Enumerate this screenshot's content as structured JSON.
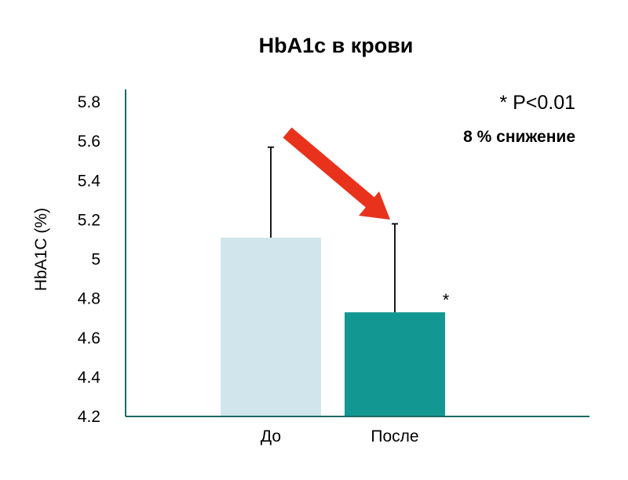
{
  "chart_data": {
    "type": "bar",
    "title": "HbA1c в крови",
    "xlabel": "",
    "ylabel": "HbA1C (%)",
    "categories": [
      "До",
      "После"
    ],
    "values": [
      5.11,
      4.73
    ],
    "error_upper": [
      5.57,
      5.18
    ],
    "ylim": [
      4.2,
      5.8
    ],
    "yticks": [
      "4.2",
      "4.4",
      "4.6",
      "4.8",
      "5",
      "5.2",
      "5.4",
      "5.6",
      "5.8"
    ],
    "grid": false,
    "significance_marker": "*",
    "annotations": {
      "p_value": "* P<0.01",
      "reduction": "8 % снижение"
    },
    "colors": {
      "before": "#d1e6ec",
      "after": "#139793",
      "axis": "#1d6b63",
      "arrow": "#e8321c"
    }
  }
}
